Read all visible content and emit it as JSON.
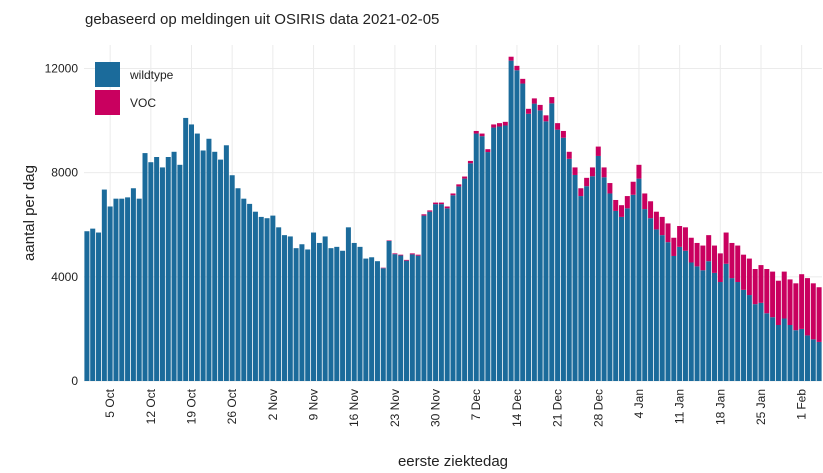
{
  "chart_data": {
    "type": "stacked-bar",
    "title": "gebaseerd op meldingen uit OSIRIS data 2021-02-05",
    "x_label": "eerste ziektedag",
    "y_label": "aantal per dag",
    "categories": [
      null,
      null,
      null,
      null,
      "5 Oct",
      null,
      null,
      null,
      null,
      null,
      null,
      "12 Oct",
      null,
      null,
      null,
      null,
      null,
      null,
      "19 Oct",
      null,
      null,
      null,
      null,
      null,
      null,
      "26 Oct",
      null,
      null,
      null,
      null,
      null,
      null,
      "2 Nov",
      null,
      null,
      null,
      null,
      null,
      null,
      "9 Nov",
      null,
      null,
      null,
      null,
      null,
      null,
      "16 Nov",
      null,
      null,
      null,
      null,
      null,
      null,
      "23 Nov",
      null,
      null,
      null,
      null,
      null,
      null,
      "30 Nov",
      null,
      null,
      null,
      null,
      null,
      null,
      "7 Dec",
      null,
      null,
      null,
      null,
      null,
      null,
      "14 Dec",
      null,
      null,
      null,
      null,
      null,
      null,
      "21 Dec",
      null,
      null,
      null,
      null,
      null,
      null,
      "28 Dec",
      null,
      null,
      null,
      null,
      null,
      null,
      "4 Jan",
      null,
      null,
      null,
      null,
      null,
      null,
      "11 Jan",
      null,
      null,
      null,
      null,
      null,
      null,
      "18 Jan",
      null,
      null,
      null,
      null,
      null,
      null,
      "25 Jan",
      null,
      null,
      null,
      null,
      null,
      null,
      "1 Feb",
      null,
      null,
      null
    ],
    "series": [
      {
        "name": "wildtype",
        "color": "#1b6b9b",
        "values": [
          5750,
          5850,
          5700,
          7350,
          6700,
          7000,
          7000,
          7050,
          7400,
          7000,
          8750,
          8400,
          8600,
          8200,
          8600,
          8800,
          8300,
          10100,
          9850,
          9500,
          8850,
          9300,
          8800,
          8500,
          9050,
          7900,
          7400,
          7000,
          6800,
          6500,
          6300,
          6250,
          6350,
          5900,
          5600,
          5550,
          5100,
          5250,
          5050,
          5700,
          5300,
          5550,
          5100,
          5150,
          5000,
          5900,
          5300,
          5150,
          4700,
          4750,
          4600,
          4330,
          5380,
          4870,
          4820,
          4620,
          4860,
          4810,
          6350,
          6500,
          6790,
          6790,
          6630,
          7130,
          7470,
          7770,
          8360,
          9500,
          9400,
          8790,
          9730,
          9770,
          9810,
          12300,
          11930,
          11420,
          10260,
          10650,
          10390,
          9970,
          10660,
          9650,
          9340,
          8530,
          7910,
          7100,
          7480,
          7860,
          8640,
          7820,
          7200,
          6530,
          6300,
          6630,
          7150,
          7770,
          6600,
          6250,
          5820,
          5600,
          5330,
          4800,
          5150,
          5000,
          4550,
          4400,
          4250,
          4600,
          4150,
          3800,
          4500,
          3950,
          3800,
          3500,
          3300,
          2950,
          3000,
          2600,
          2450,
          2150,
          2400,
          2150,
          1950,
          2000,
          1750,
          1600,
          1500
        ]
      },
      {
        "name": "VOC",
        "color": "#c9005f",
        "values": [
          0,
          0,
          0,
          0,
          0,
          0,
          0,
          0,
          0,
          0,
          0,
          0,
          0,
          0,
          0,
          0,
          0,
          0,
          0,
          0,
          0,
          0,
          0,
          0,
          0,
          0,
          0,
          0,
          0,
          0,
          0,
          0,
          0,
          0,
          0,
          0,
          0,
          0,
          0,
          0,
          0,
          0,
          0,
          0,
          0,
          0,
          0,
          0,
          0,
          0,
          0,
          20,
          20,
          30,
          30,
          30,
          40,
          40,
          50,
          50,
          60,
          60,
          70,
          70,
          80,
          80,
          90,
          100,
          100,
          110,
          120,
          130,
          140,
          150,
          170,
          180,
          190,
          200,
          210,
          230,
          240,
          250,
          260,
          270,
          290,
          300,
          320,
          340,
          360,
          380,
          400,
          420,
          450,
          470,
          500,
          530,
          600,
          650,
          680,
          700,
          720,
          700,
          800,
          900,
          950,
          900,
          950,
          1000,
          1050,
          1100,
          1200,
          1350,
          1400,
          1350,
          1400,
          1350,
          1450,
          1700,
          1750,
          1700,
          1800,
          1750,
          1800,
          2100,
          2200,
          2150,
          2100
        ]
      }
    ],
    "ylim": [
      0,
      12900
    ],
    "yticks": [
      0,
      4000,
      8000,
      12000
    ],
    "grid": true,
    "legend": "top-left"
  }
}
